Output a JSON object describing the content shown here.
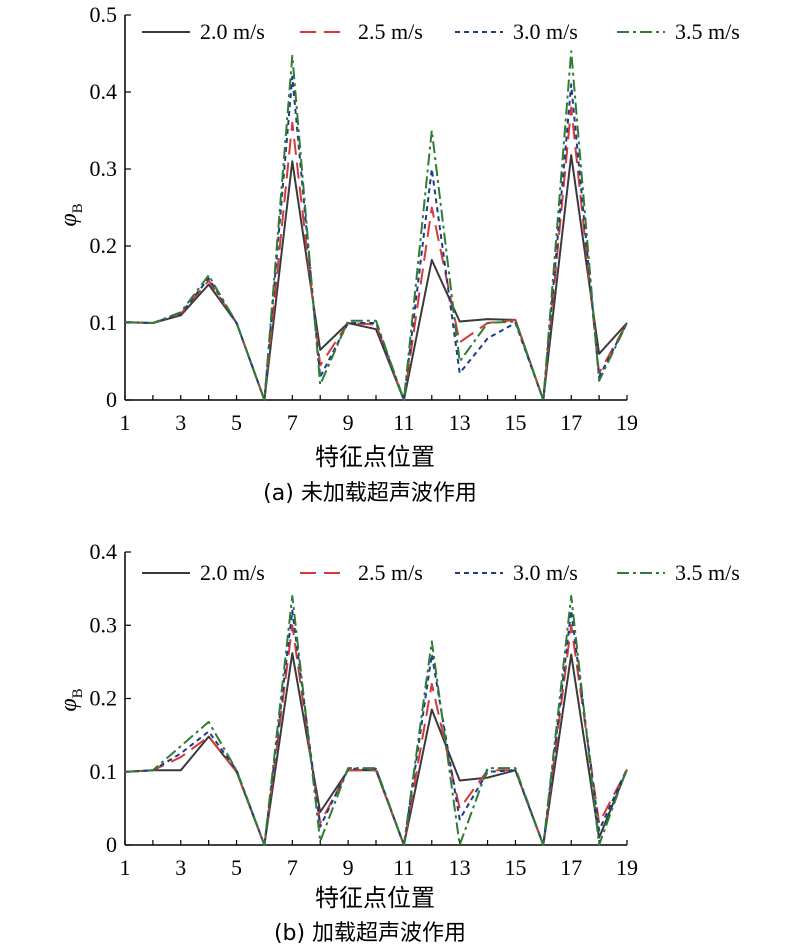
{
  "series_styles": [
    {
      "name": "2.0 m/s",
      "color": "#3a3a3a",
      "dash": ""
    },
    {
      "name": "2.5 m/s",
      "color": "#d43a3a",
      "dash": "16 8"
    },
    {
      "name": "3.0 m/s",
      "color": "#1f3a8a",
      "dash": "5 4"
    },
    {
      "name": "3.5 m/s",
      "color": "#2e7d32",
      "dash": "12 4 3 4"
    }
  ],
  "chart_data": [
    {
      "type": "line",
      "caption": "(a) 未加载超声波作用",
      "xlabel": "特征点位置",
      "ylabel": "φ",
      "ylabel_sub": "B",
      "x": [
        1,
        2,
        3,
        4,
        5,
        6,
        7,
        8,
        9,
        10,
        11,
        12,
        13,
        14,
        15,
        16,
        17,
        18,
        19
      ],
      "x_ticks": [
        1,
        3,
        5,
        7,
        9,
        11,
        13,
        15,
        17,
        19
      ],
      "ylim": [
        0,
        0.5
      ],
      "y_ticks": [
        "0",
        "0.1",
        "0.2",
        "0.3",
        "0.4",
        "0.5"
      ],
      "legend_position": "top",
      "series": [
        {
          "name": "2.0 m/s",
          "values": [
            0.101,
            0.1,
            0.11,
            0.15,
            0.1,
            0.0,
            0.31,
            0.065,
            0.1,
            0.092,
            0.0,
            0.182,
            0.102,
            0.105,
            0.104,
            0.0,
            0.318,
            0.06,
            0.1
          ]
        },
        {
          "name": "2.5 m/s",
          "values": [
            0.101,
            0.1,
            0.112,
            0.155,
            0.1,
            0.0,
            0.36,
            0.045,
            0.1,
            0.098,
            0.0,
            0.25,
            0.075,
            0.1,
            0.104,
            0.0,
            0.38,
            0.035,
            0.1
          ]
        },
        {
          "name": "3.0 m/s",
          "values": [
            0.101,
            0.1,
            0.112,
            0.158,
            0.1,
            0.0,
            0.42,
            0.03,
            0.1,
            0.1,
            0.0,
            0.3,
            0.035,
            0.08,
            0.1,
            0.0,
            0.41,
            0.03,
            0.1
          ]
        },
        {
          "name": "3.5 m/s",
          "values": [
            0.101,
            0.1,
            0.114,
            0.162,
            0.1,
            0.0,
            0.447,
            0.02,
            0.103,
            0.103,
            0.0,
            0.35,
            0.05,
            0.1,
            0.102,
            0.0,
            0.453,
            0.025,
            0.1
          ]
        }
      ]
    },
    {
      "type": "line",
      "caption": "(b) 加载超声波作用",
      "xlabel": "特征点位置",
      "ylabel": "φ",
      "ylabel_sub": "B",
      "x": [
        1,
        2,
        3,
        4,
        5,
        6,
        7,
        8,
        9,
        10,
        11,
        12,
        13,
        14,
        15,
        16,
        17,
        18,
        19
      ],
      "x_ticks": [
        1,
        3,
        5,
        7,
        9,
        11,
        13,
        15,
        17,
        19
      ],
      "ylim": [
        0,
        0.4
      ],
      "y_ticks": [
        "0",
        "0.1",
        "0.2",
        "0.3",
        "0.4"
      ],
      "legend_position": "top",
      "series": [
        {
          "name": "2.0 m/s",
          "values": [
            0.1,
            0.102,
            0.102,
            0.148,
            0.1,
            0.0,
            0.262,
            0.045,
            0.102,
            0.102,
            0.0,
            0.185,
            0.088,
            0.092,
            0.102,
            0.0,
            0.26,
            0.01,
            0.103
          ]
        },
        {
          "name": "2.5 m/s",
          "values": [
            0.1,
            0.102,
            0.12,
            0.148,
            0.1,
            0.0,
            0.3,
            0.03,
            0.102,
            0.102,
            0.0,
            0.22,
            0.05,
            0.102,
            0.102,
            0.0,
            0.3,
            0.03,
            0.103
          ]
        },
        {
          "name": "3.0 m/s",
          "values": [
            0.1,
            0.102,
            0.125,
            0.155,
            0.102,
            0.0,
            0.32,
            0.025,
            0.104,
            0.104,
            0.0,
            0.26,
            0.035,
            0.1,
            0.102,
            0.0,
            0.32,
            0.02,
            0.104
          ]
        },
        {
          "name": "3.5 m/s",
          "values": [
            0.1,
            0.102,
            0.135,
            0.168,
            0.102,
            0.0,
            0.34,
            0.005,
            0.105,
            0.105,
            0.0,
            0.278,
            0.0,
            0.105,
            0.105,
            0.0,
            0.34,
            0.0,
            0.105
          ]
        }
      ]
    }
  ]
}
